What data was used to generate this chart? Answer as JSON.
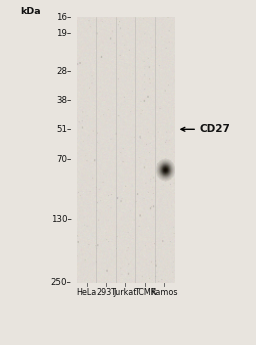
{
  "background_color": "#e8e4de",
  "kda_values": [
    250,
    130,
    70,
    51,
    38,
    28,
    19,
    16
  ],
  "lane_labels": [
    "HeLa",
    "293T",
    "Jurkat",
    "TCMK",
    "Ramos"
  ],
  "band_lane_idx": 4,
  "band_kda": 51,
  "band_label": "CD27",
  "n_lanes": 5,
  "gel_bg_color": [
    0.875,
    0.855,
    0.828
  ],
  "band_color": [
    0.08,
    0.08,
    0.08
  ],
  "text_color": "#111111",
  "tick_color": "#333333",
  "log_min": 1.204,
  "log_max": 2.398
}
